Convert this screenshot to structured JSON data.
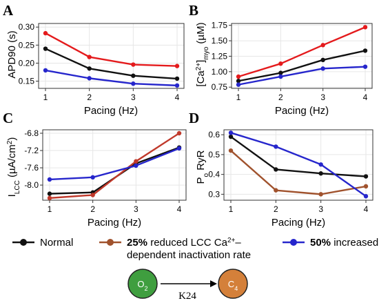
{
  "chart_data": [
    {
      "type": "line",
      "panel_label": "A",
      "x": [
        1,
        2,
        3,
        4
      ],
      "xlabel": "Pacing (Hz)",
      "ylabel": "APD90 (s)",
      "ylim": [
        0.13,
        0.31
      ],
      "yticks": [
        "0.15",
        "0.20",
        "0.25",
        "0.30"
      ],
      "ytick_values": [
        0.15,
        0.2,
        0.25,
        0.3
      ],
      "xticks": [
        "1",
        "2",
        "3",
        "4"
      ],
      "series": [
        {
          "color": "#111111",
          "values": [
            0.24,
            0.185,
            0.165,
            0.157
          ]
        },
        {
          "color": "#e41a1c",
          "values": [
            0.283,
            0.217,
            0.196,
            0.192
          ]
        },
        {
          "color": "#2626cc",
          "values": [
            0.18,
            0.158,
            0.143,
            0.138
          ]
        }
      ]
    },
    {
      "type": "line",
      "panel_label": "B",
      "x": [
        1,
        2,
        3,
        4
      ],
      "xlabel": "Pacing (Hz)",
      "ylabel_main": "[Ca",
      "ylabel_sup": "2+",
      "ylabel_mid": "]",
      "ylabel_sub": "myo",
      "ylabel_unit": " (µM)",
      "ylim": [
        0.73,
        1.78
      ],
      "yticks": [
        "0.75",
        "1.00",
        "1.25",
        "1.50",
        "1.75"
      ],
      "ytick_values": [
        0.75,
        1.0,
        1.25,
        1.5,
        1.75
      ],
      "xticks": [
        "1",
        "2",
        "3",
        "4"
      ],
      "series": [
        {
          "color": "#111111",
          "values": [
            0.85,
            0.98,
            1.19,
            1.34
          ]
        },
        {
          "color": "#e41a1c",
          "values": [
            0.92,
            1.13,
            1.43,
            1.72
          ]
        },
        {
          "color": "#2626cc",
          "values": [
            0.79,
            0.92,
            1.05,
            1.08
          ]
        }
      ]
    },
    {
      "type": "line",
      "panel_label": "C",
      "x": [
        1,
        2,
        3,
        4
      ],
      "xlabel": "Pacing (Hz)",
      "ylabel_main": "I",
      "ylabel_sub": "LCC",
      "ylabel_unit": " (µA/cm",
      "ylabel_sup": "2",
      "ylabel_end": ")",
      "ylim": [
        -8.35,
        -6.72
      ],
      "yticks": [
        "-8.0",
        "-7.6",
        "-7.2",
        "-6.8"
      ],
      "ytick_values": [
        -8.0,
        -7.6,
        -7.2,
        -6.8
      ],
      "xticks": [
        "1",
        "2",
        "3",
        "4"
      ],
      "series": [
        {
          "color": "#111111",
          "values": [
            -8.2,
            -8.17,
            -7.5,
            -7.13
          ]
        },
        {
          "color": "#c0392b",
          "values": [
            -8.3,
            -8.23,
            -7.45,
            -6.8
          ]
        },
        {
          "color": "#2626cc",
          "values": [
            -7.87,
            -7.82,
            -7.55,
            -7.15
          ]
        }
      ]
    },
    {
      "type": "line",
      "panel_label": "D",
      "x": [
        1,
        2,
        3,
        4
      ],
      "xlabel": "Pacing (Hz)",
      "ylabel_main": "P",
      "ylabel_sub": "o",
      "ylabel_unit": " RyR",
      "ylim": [
        0.27,
        0.625
      ],
      "yticks": [
        "0.3",
        "0.4",
        "0.5",
        "0.6"
      ],
      "ytick_values": [
        0.3,
        0.4,
        0.5,
        0.6
      ],
      "xticks": [
        "1",
        "2",
        "3",
        "4"
      ],
      "series": [
        {
          "color": "#111111",
          "values": [
            0.59,
            0.425,
            0.405,
            0.39
          ]
        },
        {
          "color": "#a0522d",
          "values": [
            0.52,
            0.32,
            0.3,
            0.34
          ]
        },
        {
          "color": "#2626cc",
          "values": [
            0.61,
            0.54,
            0.45,
            0.29
          ]
        }
      ]
    }
  ],
  "legend": {
    "normal": "Normal",
    "reduced_bold": "25%",
    "reduced_text_1": " reduced LCC Ca",
    "reduced_sup": "2+",
    "reduced_text_1b": "–",
    "reduced_text_2": "dependent inactivation rate",
    "increased_bold": "50%",
    "increased_text": " increased",
    "colors": {
      "normal": "#111111",
      "reduced": "#a0522d",
      "increased": "#2626cc"
    }
  },
  "scheme": {
    "state_from": "O",
    "state_from_sub": "2",
    "state_to": "C",
    "state_to_sub": "4",
    "rate": "K24",
    "color_from": "#3f9e3f",
    "color_to": "#d4803a"
  }
}
